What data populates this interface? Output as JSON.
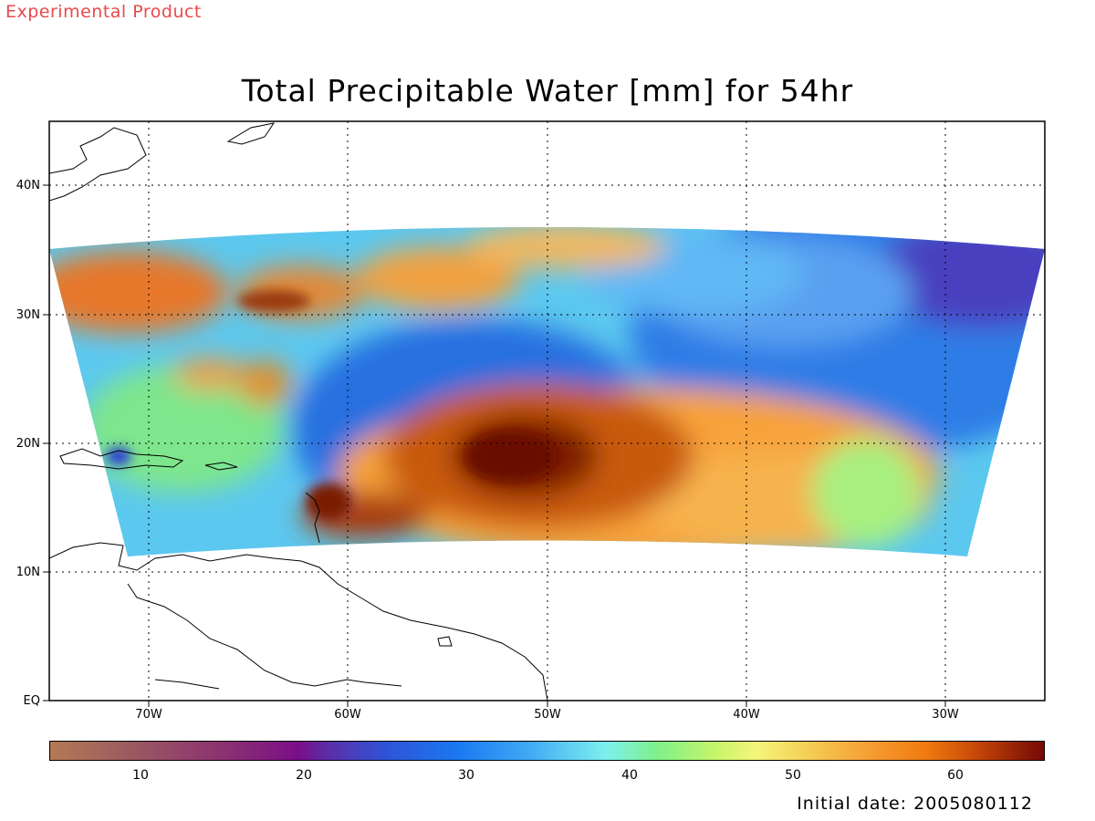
{
  "header": {
    "product_label": "Experimental Product",
    "title": "Total Precipitable Water [mm] for 54hr"
  },
  "map": {
    "lat_labels": [
      "40N",
      "30N",
      "20N",
      "10N",
      "EQ"
    ],
    "lon_labels": [
      "70W",
      "60W",
      "50W",
      "40W",
      "30W"
    ],
    "lat_range": [
      0,
      45
    ],
    "lon_range": [
      -75,
      -25
    ],
    "grid": "dotted"
  },
  "colorbar": {
    "ticks": [
      "10",
      "20",
      "30",
      "40",
      "50",
      "60"
    ],
    "range": [
      5,
      65
    ],
    "colors": [
      "#b47a55",
      "#8a2f72",
      "#2e55d8",
      "#7df0ee",
      "#f5f57a",
      "#f07b10",
      "#7a0808"
    ]
  },
  "footer": {
    "initial_date": "Initial date: 2005080112"
  }
}
